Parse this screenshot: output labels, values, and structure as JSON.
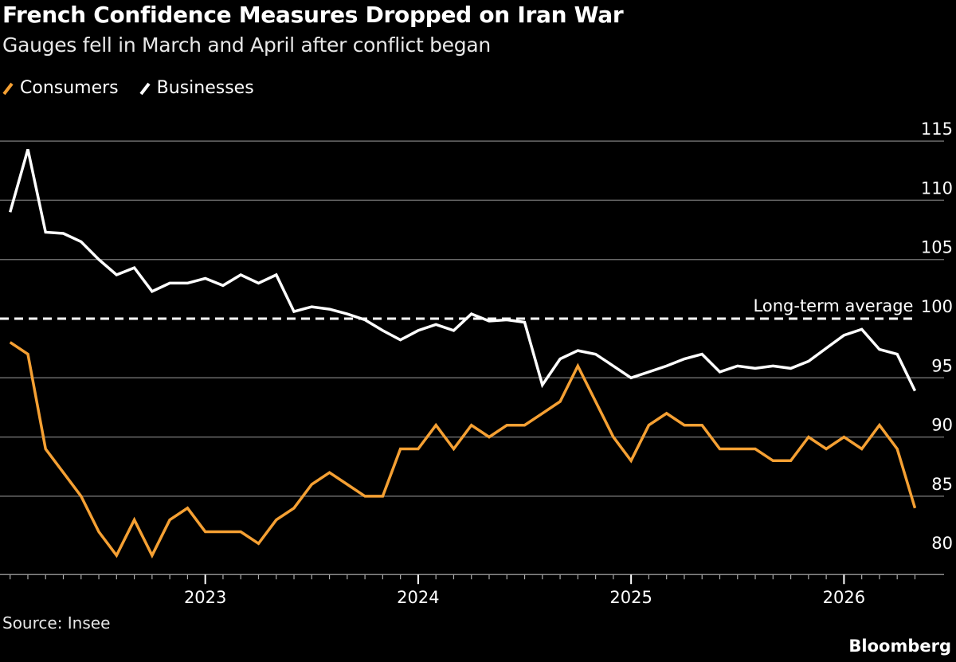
{
  "title": "French Confidence Measures Dropped on Iran War",
  "subtitle": "Gauges fell in March and April after conflict began",
  "source": "Source: Insee",
  "brand": "Bloomberg",
  "chart_data": {
    "type": "line",
    "title": "French Confidence Measures Dropped on Iran War",
    "subtitle": "Gauges fell in March and April after conflict began",
    "x_start": "2022-02",
    "x_end": "2026-05",
    "x_frequency": "monthly",
    "x_tick_labels": [
      "2023",
      "2024",
      "2025",
      "2026"
    ],
    "y_tick_labels": [
      "80",
      "85",
      "90",
      "95",
      "100",
      "105",
      "110",
      "115"
    ],
    "ylim": [
      80,
      115
    ],
    "y_axis_side": "right",
    "grid": true,
    "legend_position": "top-left",
    "reference_line": {
      "label": "Long-term average",
      "value": 100,
      "style": "dashed",
      "color": "#ffffff"
    },
    "series": [
      {
        "name": "Consumers",
        "color": "#f5a033",
        "values": [
          98,
          97,
          89,
          87,
          85,
          82,
          80,
          83,
          80,
          83,
          84,
          82,
          82,
          82,
          81,
          83,
          84,
          86,
          87,
          86,
          85,
          85,
          89,
          89,
          91,
          89,
          91,
          90,
          91,
          91,
          92,
          93,
          96,
          93,
          90,
          88,
          91,
          92,
          91,
          91,
          89,
          89,
          89,
          88,
          88,
          90,
          89,
          90,
          89,
          91,
          89,
          84
        ]
      },
      {
        "name": "Businesses",
        "color": "#ffffff",
        "values": [
          109,
          114.3,
          107.3,
          107.2,
          106.5,
          105,
          103.7,
          104.3,
          102.3,
          103,
          103,
          103.4,
          102.8,
          103.7,
          103,
          103.7,
          100.6,
          101,
          100.8,
          100.4,
          99.9,
          99,
          98.2,
          99,
          99.5,
          99,
          100.4,
          99.8,
          99.9,
          99.7,
          94.4,
          96.6,
          97.3,
          97,
          96,
          95,
          95.5,
          96,
          96.6,
          97,
          95.5,
          96,
          95.8,
          96,
          95.8,
          96.4,
          97.5,
          98.6,
          99.1,
          97.4,
          97,
          93.9
        ]
      }
    ]
  }
}
